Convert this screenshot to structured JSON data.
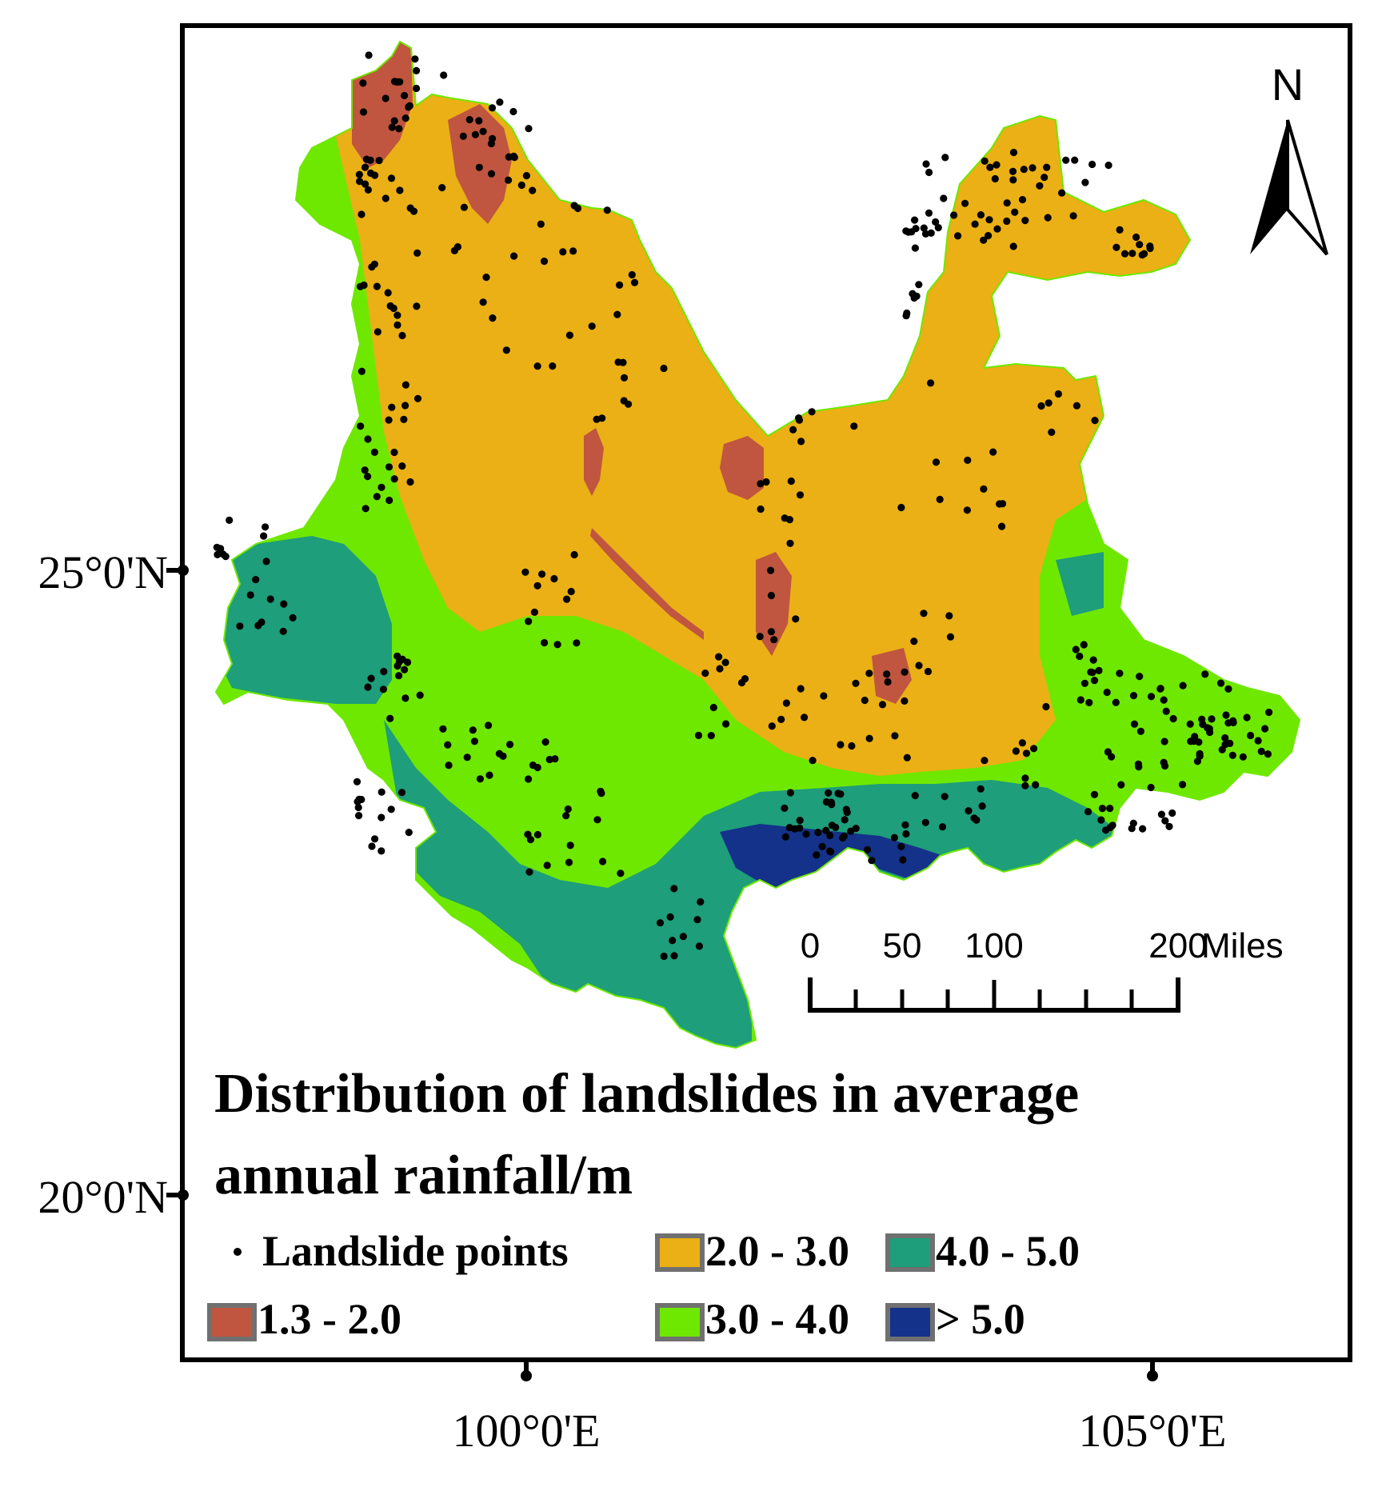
{
  "north_arrow": {
    "label": "N"
  },
  "scale_bar": {
    "labels": [
      "0",
      "50",
      "100",
      "200"
    ],
    "unit": "Miles"
  },
  "axes": {
    "lat_ticks": [
      "25°0'N",
      "20°0'N"
    ],
    "lon_ticks": [
      "100°0'E",
      "105°0'E"
    ]
  },
  "legend": {
    "title_line1": "Distribution of landslides in average",
    "title_line2": "annual rainfall/m",
    "points_label": "Landslide points",
    "classes": [
      {
        "label": "1.3 - 2.0",
        "color": "#c0563f"
      },
      {
        "label": "2.0 - 3.0",
        "color": "#eab016"
      },
      {
        "label": "3.0 - 4.0",
        "color": "#6fe800"
      },
      {
        "label": "4.0 - 5.0",
        "color": "#1e9e7a"
      },
      {
        "label": "> 5.0",
        "color": "#14328a"
      }
    ],
    "swatch_border": "#707070",
    "point_color": "#000000"
  }
}
